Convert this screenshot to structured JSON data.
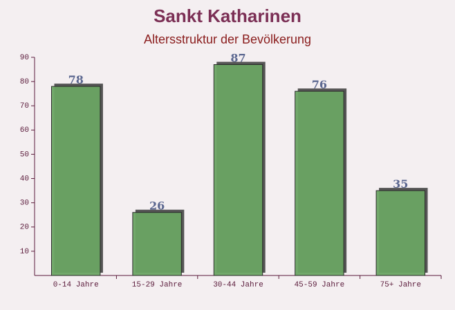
{
  "chart_data": {
    "type": "bar",
    "title": "Sankt Katharinen",
    "subtitle": "Altersstruktur der Bevölkerung",
    "categories": [
      "0-14 Jahre",
      "15-29 Jahre",
      "30-44 Jahre",
      "45-59 Jahre",
      "75+ Jahre"
    ],
    "values": [
      78,
      26,
      87,
      76,
      35
    ],
    "color": "#6aa463",
    "ylim": [
      0,
      90
    ],
    "yticks": [
      10,
      20,
      30,
      40,
      50,
      60,
      70,
      80,
      90
    ],
    "grid": false
  }
}
